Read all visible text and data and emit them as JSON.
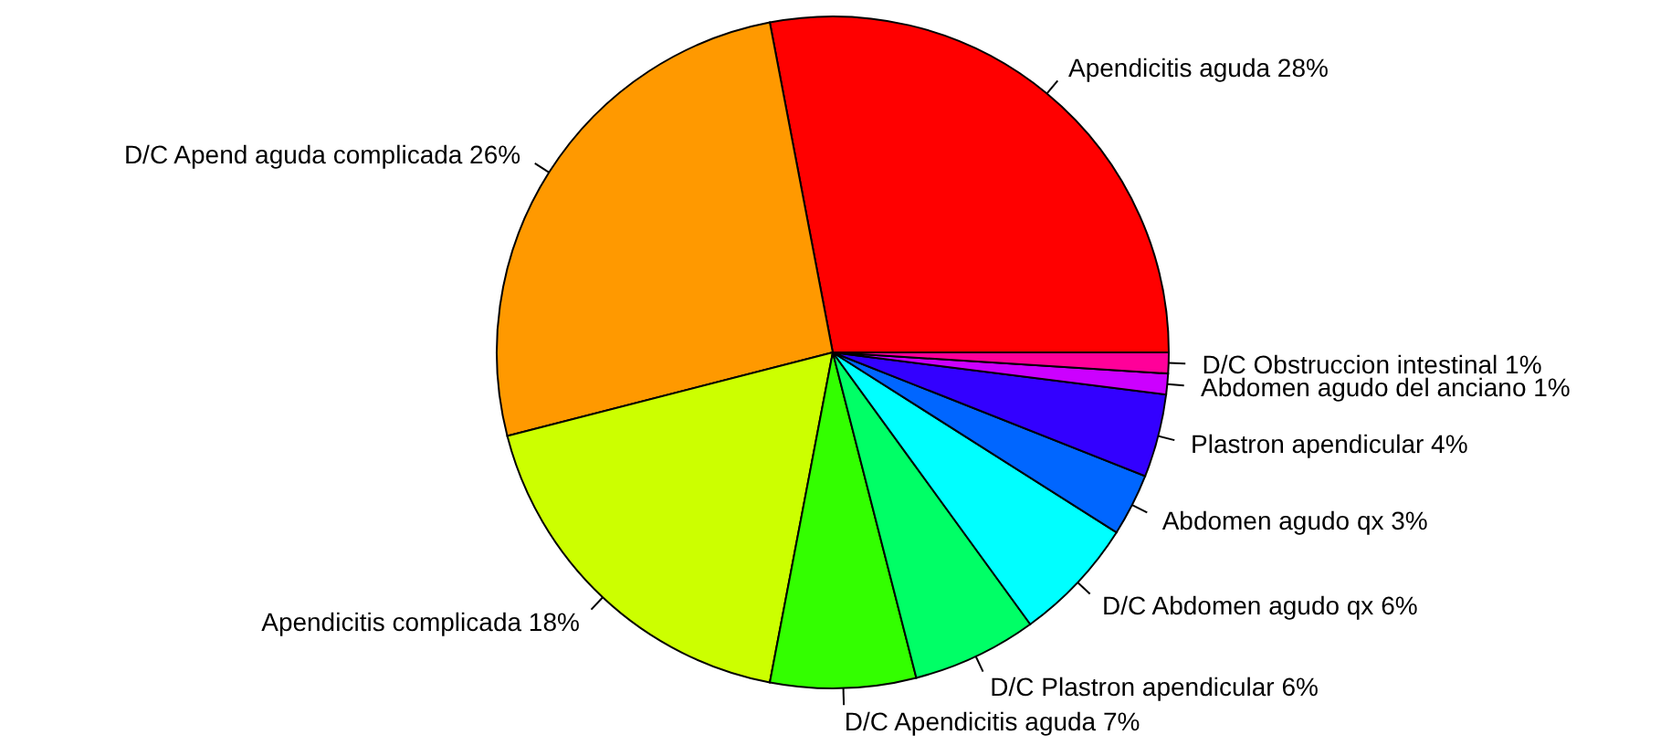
{
  "chart_data": {
    "type": "pie",
    "categories": [
      "Apendicitis aguda",
      "D/C Apend aguda complicada",
      "Apendicitis complicada",
      "D/C Apendicitis aguda",
      "D/C Plastron apendicular",
      "D/C Abdomen agudo qx",
      "Abdomen agudo qx",
      "Plastron apendicular",
      "Abdomen agudo del anciano",
      "D/C Obstruccion intestinal"
    ],
    "values": [
      28,
      26,
      18,
      7,
      6,
      6,
      3,
      4,
      1,
      1
    ],
    "value_labels": [
      "28%",
      "26%",
      "18%",
      "7%",
      "6%",
      "6%",
      "3%",
      "4%",
      "1%",
      "1%"
    ],
    "colors": [
      "#ff0000",
      "#ff9900",
      "#ccff00",
      "#33ff00",
      "#00ff66",
      "#00ffff",
      "#0066ff",
      "#3300ff",
      "#cc00ff",
      "#ff0099"
    ]
  }
}
